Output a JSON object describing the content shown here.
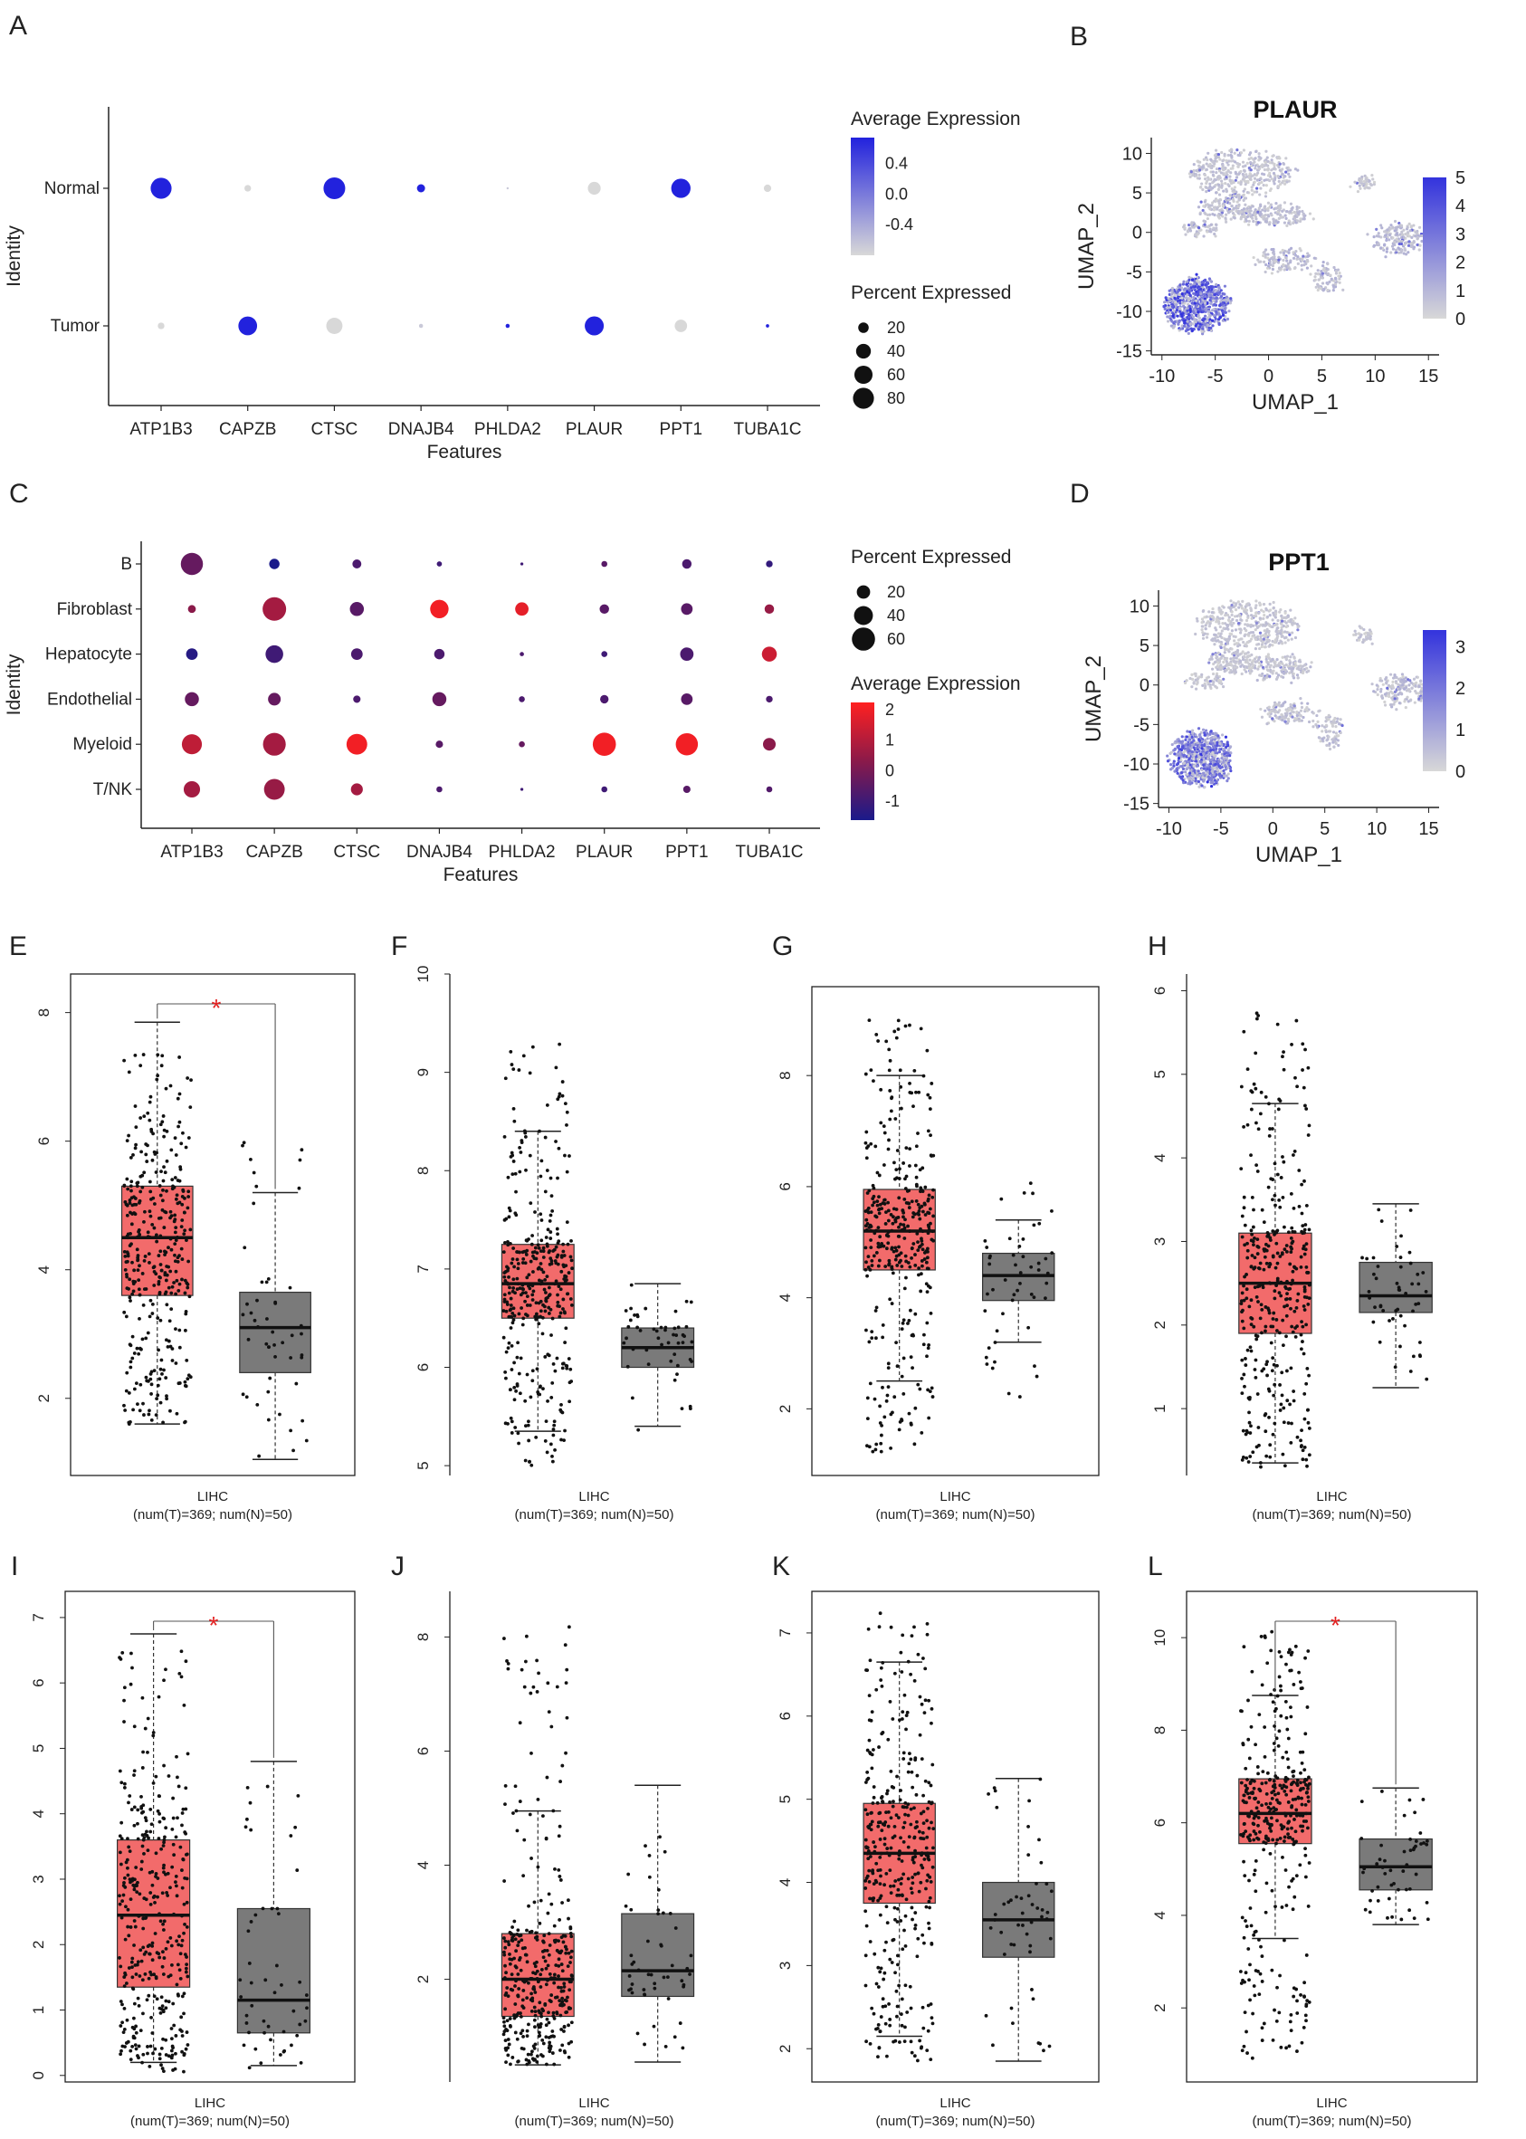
{
  "chart_data": [
    {
      "panel": "A",
      "type": "scatter",
      "subtype": "dotplot",
      "xlabel": "Features",
      "ylabel": "Identity",
      "features": [
        "ATP1B3",
        "CAPZB",
        "CTSC",
        "DNAJB4",
        "PHLDA2",
        "PLAUR",
        "PPT1",
        "TUBA1C"
      ],
      "identities": [
        "Tumor",
        "Normal"
      ],
      "percent": [
        [
          8,
          80
        ],
        [
          64,
          8
        ],
        [
          48,
          86
        ],
        [
          3,
          12
        ],
        [
          3,
          0.3
        ],
        [
          66,
          30
        ],
        [
          28,
          68
        ],
        [
          2,
          10
        ]
      ],
      "avgexp": [
        [
          -0.6,
          0.6
        ],
        [
          0.6,
          -0.6
        ],
        [
          -0.6,
          0.6
        ],
        [
          -0.5,
          0.6
        ],
        [
          0.6,
          -0.5
        ],
        [
          0.6,
          -0.6
        ],
        [
          -0.6,
          0.6
        ],
        [
          0.6,
          -0.6
        ]
      ],
      "color_legend": {
        "title": "Average Expression",
        "ticks": [
          "0.4",
          "0.0",
          "-0.4"
        ],
        "low": "#d8d8d8",
        "high": "#2222dd",
        "range": [
          -0.6,
          0.6
        ]
      },
      "size_legend": {
        "title": "Percent Expressed",
        "ticks": [
          "20",
          "40",
          "60",
          "80"
        ]
      }
    },
    {
      "panel": "B",
      "type": "scatter",
      "subtype": "umap-feature",
      "title": "PLAUR",
      "xlabel": "UMAP_1",
      "ylabel": "UMAP_2",
      "xticks": [
        "-10",
        "-5",
        "0",
        "5",
        "10",
        "15"
      ],
      "yticks": [
        "10",
        "5",
        "0",
        "-5",
        "-10",
        "-15"
      ],
      "xlim": [
        -11,
        16
      ],
      "ylim": [
        -15.5,
        12
      ],
      "colorbar": {
        "ticks": [
          "5",
          "4",
          "3",
          "2",
          "1",
          "0"
        ],
        "range": [
          0,
          5
        ]
      }
    },
    {
      "panel": "C",
      "type": "scatter",
      "subtype": "dotplot",
      "xlabel": "Features",
      "ylabel": "Identity",
      "features": [
        "ATP1B3",
        "CAPZB",
        "CTSC",
        "DNAJB4",
        "PHLDA2",
        "PLAUR",
        "PPT1",
        "TUBA1C"
      ],
      "identities": [
        "T/NK",
        "Myeloid",
        "Endothelial",
        "Hepatocyte",
        "Fibroblast",
        "B"
      ],
      "percent": [
        [
          30,
          45,
          22,
          15,
          7,
          55
        ],
        [
          48,
          58,
          18,
          35,
          62,
          12
        ],
        [
          16,
          48,
          6,
          15,
          22,
          9
        ],
        [
          4,
          6,
          22,
          12,
          38,
          3
        ],
        [
          1,
          4,
          4,
          2,
          20,
          1
        ],
        [
          4,
          60,
          8,
          4,
          10,
          4
        ],
        [
          6,
          55,
          15,
          20,
          15,
          10
        ],
        [
          4,
          18,
          5,
          25,
          10,
          5
        ]
      ],
      "avgexp": [
        [
          0.8,
          1.2,
          -0.2,
          -1.2,
          0.4,
          -0.2
        ],
        [
          0.6,
          0.8,
          -0.2,
          -0.8,
          0.8,
          -1.4
        ],
        [
          0.8,
          2.0,
          -0.6,
          -0.6,
          -0.4,
          -0.6
        ],
        [
          -0.6,
          -0.4,
          -0.2,
          -0.6,
          2.0,
          -0.8
        ],
        [
          -0.8,
          -0.2,
          -0.6,
          -0.6,
          1.8,
          -0.8
        ],
        [
          -0.8,
          2.0,
          -0.6,
          -0.8,
          -0.4,
          -0.4
        ],
        [
          -0.4,
          2.0,
          -0.4,
          -0.6,
          -0.4,
          -0.6
        ],
        [
          -0.5,
          0.4,
          -0.6,
          1.4,
          0.6,
          -1.0
        ]
      ],
      "color_legend": {
        "title": "Average Expression",
        "ticks": [
          "2",
          "1",
          "0",
          "-1"
        ],
        "range": [
          -1.4,
          2.2
        ]
      },
      "size_legend": {
        "title": "Percent Expressed",
        "ticks": [
          "20",
          "40",
          "60"
        ]
      }
    },
    {
      "panel": "D",
      "type": "scatter",
      "subtype": "umap-feature",
      "title": "PPT1",
      "xlabel": "UMAP_1",
      "ylabel": "UMAP_2",
      "xticks": [
        "-10",
        "-5",
        "0",
        "5",
        "10",
        "15"
      ],
      "yticks": [
        "10",
        "5",
        "0",
        "-5",
        "-10",
        "-15"
      ],
      "xlim": [
        -11,
        16
      ],
      "ylim": [
        -15.5,
        12
      ],
      "colorbar": {
        "ticks": [
          "3",
          "2",
          "1",
          "0"
        ],
        "range": [
          0,
          3.4
        ]
      }
    },
    {
      "panel": "E",
      "type": "box",
      "xlabel": "LIHC",
      "sublabel": "(num(T)=369; num(N)=50)",
      "significant": true,
      "ylim": [
        0.8,
        8.6
      ],
      "yticks": [
        "2",
        "4",
        "6",
        "8"
      ],
      "tumor": {
        "min": 1.6,
        "q1": 3.6,
        "median": 4.5,
        "q3": 5.3,
        "max": 7.85,
        "lo": 1.6,
        "hi": 7.5
      },
      "normal": {
        "min": 1.05,
        "q1": 2.4,
        "median": 3.1,
        "q3": 3.65,
        "max": 5.2,
        "lo": 1.1,
        "hi": 6.1
      }
    },
    {
      "panel": "F",
      "type": "box",
      "xlabel": "LIHC",
      "sublabel": "(num(T)=369; num(N)=50)",
      "significant": false,
      "ylim": [
        4.9,
        10.0
      ],
      "yticks": [
        "5",
        "6",
        "7",
        "8",
        "9",
        "10"
      ],
      "tumor": {
        "min": 5.35,
        "q1": 6.5,
        "median": 6.85,
        "q3": 7.25,
        "max": 8.4,
        "lo": 5.0,
        "hi": 9.35
      },
      "normal": {
        "min": 5.4,
        "q1": 6.0,
        "median": 6.2,
        "q3": 6.4,
        "max": 6.85,
        "lo": 5.3,
        "hi": 6.85
      }
    },
    {
      "panel": "G",
      "type": "box",
      "xlabel": "LIHC",
      "sublabel": "(num(T)=369; num(N)=50)",
      "significant": false,
      "ylim": [
        0.8,
        9.6
      ],
      "yticks": [
        "2",
        "4",
        "6",
        "8"
      ],
      "tumor": {
        "min": 2.5,
        "q1": 4.5,
        "median": 5.2,
        "q3": 5.95,
        "max": 8.0,
        "lo": 1.1,
        "hi": 9.0
      },
      "normal": {
        "min": 3.2,
        "q1": 3.95,
        "median": 4.4,
        "q3": 4.8,
        "max": 5.4,
        "lo": 2.2,
        "hi": 6.2
      }
    },
    {
      "panel": "H",
      "type": "box",
      "xlabel": "LIHC",
      "sublabel": "(num(T)=369; num(N)=50)",
      "significant": false,
      "ylim": [
        0.2,
        6.2
      ],
      "yticks": [
        "1",
        "2",
        "3",
        "4",
        "5",
        "6"
      ],
      "tumor": {
        "min": 0.35,
        "q1": 1.9,
        "median": 2.5,
        "q3": 3.1,
        "max": 4.65,
        "lo": 0.3,
        "hi": 5.75
      },
      "normal": {
        "min": 1.25,
        "q1": 2.15,
        "median": 2.35,
        "q3": 2.75,
        "max": 3.45,
        "lo": 1.25,
        "hi": 3.45
      }
    },
    {
      "panel": "I",
      "type": "box",
      "xlabel": "LIHC",
      "sublabel": "(num(T)=369; num(N)=50)",
      "significant": true,
      "ylim": [
        -0.1,
        7.4
      ],
      "yticks": [
        "0",
        "1",
        "2",
        "3",
        "4",
        "5",
        "6",
        "7"
      ],
      "tumor": {
        "min": 0.2,
        "q1": 1.35,
        "median": 2.45,
        "q3": 3.6,
        "max": 6.75,
        "lo": 0.05,
        "hi": 6.6
      },
      "normal": {
        "min": 0.15,
        "q1": 0.65,
        "median": 1.15,
        "q3": 2.55,
        "max": 4.8,
        "lo": 0.05,
        "hi": 4.6
      }
    },
    {
      "panel": "J",
      "type": "box",
      "xlabel": "LIHC",
      "sublabel": "(num(T)=369; num(N)=50)",
      "significant": false,
      "ylim": [
        0.2,
        8.8
      ],
      "yticks": [
        "2",
        "4",
        "6",
        "8"
      ],
      "tumor": {
        "min": 0.5,
        "q1": 1.35,
        "median": 2.0,
        "q3": 2.8,
        "max": 4.95,
        "lo": 0.5,
        "hi": 8.3
      },
      "normal": {
        "min": 0.55,
        "q1": 1.7,
        "median": 2.15,
        "q3": 3.15,
        "max": 5.4,
        "lo": 0.6,
        "hi": 5.3
      }
    },
    {
      "panel": "K",
      "type": "box",
      "xlabel": "LIHC",
      "sublabel": "(num(T)=369; num(N)=50)",
      "significant": false,
      "ylim": [
        1.6,
        7.5
      ],
      "yticks": [
        "2",
        "3",
        "4",
        "5",
        "6",
        "7"
      ],
      "tumor": {
        "min": 2.15,
        "q1": 3.75,
        "median": 4.35,
        "q3": 4.95,
        "max": 6.65,
        "lo": 1.75,
        "hi": 7.25
      },
      "normal": {
        "min": 1.85,
        "q1": 3.1,
        "median": 3.55,
        "q3": 4.0,
        "max": 5.25,
        "lo": 1.9,
        "hi": 5.25
      }
    },
    {
      "panel": "L",
      "type": "box",
      "xlabel": "LIHC",
      "sublabel": "(num(T)=369; num(N)=50)",
      "significant": true,
      "ylim": [
        0.4,
        11.0
      ],
      "yticks": [
        "2",
        "4",
        "6",
        "8",
        "10"
      ],
      "tumor": {
        "min": 3.5,
        "q1": 5.55,
        "median": 6.2,
        "q3": 6.95,
        "max": 8.75,
        "lo": 0.9,
        "hi": 10.2
      },
      "normal": {
        "min": 3.8,
        "q1": 4.55,
        "median": 5.05,
        "q3": 5.65,
        "max": 6.75,
        "lo": 3.8,
        "hi": 6.75
      }
    }
  ],
  "colors": {
    "tumor_box": "#f26b6b",
    "normal_box": "#7a7a7a",
    "significance": "#e32222",
    "dotplot_low_A": "#d8d8d8",
    "dotplot_high_A": "#2222dd",
    "umap_low": "#d3d3d3",
    "umap_high": "#3333dd"
  },
  "labels": {
    "A": "A",
    "B": "B",
    "C": "C",
    "D": "D",
    "E": "E",
    "F": "F",
    "G": "G",
    "H": "H",
    "I": "I",
    "J": "J",
    "K": "K",
    "L": "L",
    "star": "*"
  }
}
